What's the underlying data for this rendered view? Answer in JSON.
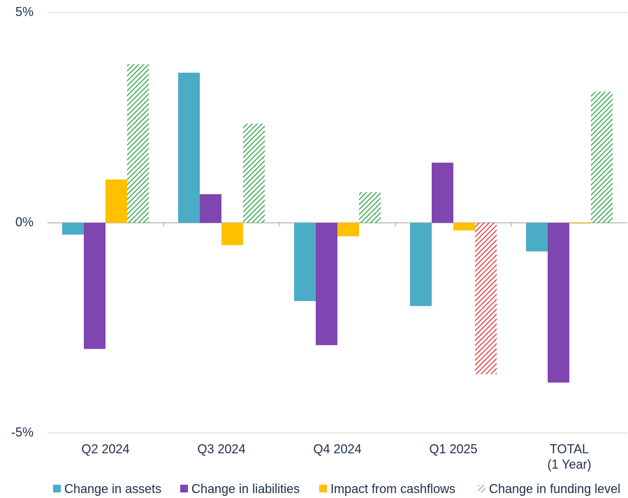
{
  "chart_data": {
    "type": "bar",
    "categories": [
      "Q2 2024",
      "Q3 2024",
      "Q4 2024",
      "Q1 2025",
      "TOTAL\n(1 Year)"
    ],
    "series": [
      {
        "name": "Change in assets",
        "color": "#4bacc6",
        "values": [
          -0.28,
          3.57,
          -1.86,
          -1.98,
          -0.68
        ]
      },
      {
        "name": "Change in liabilities",
        "color": "#7f45b0",
        "values": [
          -3.0,
          0.68,
          -2.91,
          1.43,
          -3.8
        ]
      },
      {
        "name": "Impact from cashflows",
        "color": "#ffc000",
        "values": [
          1.03,
          -0.53,
          -0.32,
          -0.18,
          -0.02
        ]
      },
      {
        "name": "Change in funding level",
        "color": "#a6a6a6",
        "hatched": true,
        "colors": [
          "#1e9e3a",
          "#1e9e3a",
          "#1e9e3a",
          "#e0262b",
          "#1e9e3a"
        ],
        "values": [
          3.77,
          2.36,
          0.73,
          -3.6,
          3.12
        ]
      }
    ],
    "ylim": [
      -5,
      5
    ],
    "yticks": [
      {
        "value": 5,
        "label": "5%"
      },
      {
        "value": 0,
        "label": "0%"
      },
      {
        "value": -5,
        "label": "-5%"
      }
    ],
    "grid": true,
    "legend": "bottom"
  }
}
